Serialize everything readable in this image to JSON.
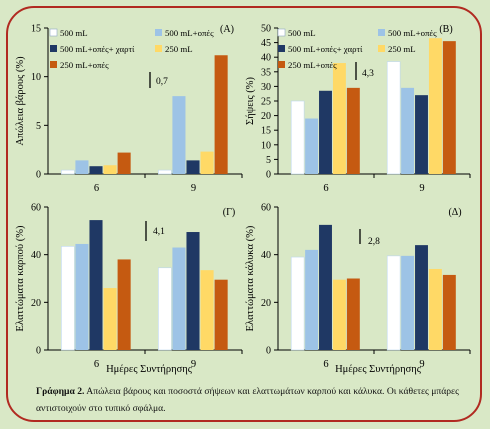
{
  "caption": {
    "label": "Γράφημα 2.",
    "text": " Απώλεια βάρους και ποσοστά σήψεων και ελαττωμάτων καρπού και κάλυκα. Οι κάθετες μπάρες αντιστοιχούν στο τυπικό σφάλμα."
  },
  "colors": {
    "frame": "#b12a21",
    "background": "#d9e8c6",
    "series": [
      "#ffffff",
      "#9dc3e6",
      "#1f3864",
      "#ffd966",
      "#c55a11"
    ]
  },
  "chart_data": [
    {
      "type": "bar",
      "panel_label": "(Α)",
      "ylabel": "Απώλεια βάρους (%)",
      "xlabel": "",
      "categories": [
        "6",
        "9"
      ],
      "ylim": [
        0,
        15
      ],
      "yticks": [
        0,
        5,
        10,
        15
      ],
      "series": [
        {
          "name": "500 mL",
          "values": [
            0.4,
            0.4
          ]
        },
        {
          "name": "500 mL+οπές",
          "values": [
            1.4,
            8.0
          ]
        },
        {
          "name": "500 mL+οπές+ χαρτί",
          "values": [
            0.8,
            1.4
          ]
        },
        {
          "name": "250 mL",
          "values": [
            0.9,
            2.3
          ]
        },
        {
          "name": "250 mL+οπές",
          "values": [
            2.2,
            12.2
          ]
        }
      ],
      "error_bar": {
        "label": "0,7",
        "value": 0.7
      },
      "legend": "top"
    },
    {
      "type": "bar",
      "panel_label": "(Β)",
      "ylabel": "Σήψεις (%)",
      "xlabel": "",
      "categories": [
        "6",
        "9"
      ],
      "ylim": [
        0,
        50
      ],
      "yticks": [
        0,
        5,
        10,
        15,
        20,
        25,
        30,
        35,
        40,
        45,
        50
      ],
      "series": [
        {
          "name": "500 mL",
          "values": [
            25,
            38.5
          ]
        },
        {
          "name": "500 mL+οπές",
          "values": [
            19,
            29.5
          ]
        },
        {
          "name": "500 mL+οπές+ χαρτί",
          "values": [
            28.5,
            27
          ]
        },
        {
          "name": "250 mL",
          "values": [
            38,
            46.5
          ]
        },
        {
          "name": "250 mL+οπές",
          "values": [
            29.5,
            45.5
          ]
        }
      ],
      "error_bar": {
        "label": "4,3",
        "value": 4.3
      },
      "legend": "top"
    },
    {
      "type": "bar",
      "panel_label": "(Γ)",
      "ylabel": "Ελαττώματα καρπού (%)",
      "xlabel": "Ημέρες Συντήρησης",
      "categories": [
        "6",
        "9"
      ],
      "ylim": [
        0,
        60
      ],
      "yticks": [
        0,
        20,
        40,
        60
      ],
      "series": [
        {
          "name": "500 mL",
          "values": [
            43.5,
            34.5
          ]
        },
        {
          "name": "500 mL+οπές",
          "values": [
            44.5,
            43
          ]
        },
        {
          "name": "500 mL+οπές+ χαρτί",
          "values": [
            54.5,
            49.5
          ]
        },
        {
          "name": "250 mL",
          "values": [
            26,
            33.5
          ]
        },
        {
          "name": "250 mL+οπές",
          "values": [
            38,
            29.5
          ]
        }
      ],
      "error_bar": {
        "label": "4,1",
        "value": 4.1
      },
      "legend": "none"
    },
    {
      "type": "bar",
      "panel_label": "(Δ)",
      "ylabel": "Ελαττώματα κάλυκα (%)",
      "xlabel": "Ημέρες Συντήρησης",
      "categories": [
        "6",
        "9"
      ],
      "ylim": [
        0,
        60
      ],
      "yticks": [
        0,
        20,
        40,
        60
      ],
      "series": [
        {
          "name": "500 mL",
          "values": [
            39,
            39.5
          ]
        },
        {
          "name": "500 mL+οπές",
          "values": [
            42,
            39.5
          ]
        },
        {
          "name": "500 mL+οπές+ χαρτί",
          "values": [
            52.5,
            44
          ]
        },
        {
          "name": "250 mL",
          "values": [
            29.5,
            34
          ]
        },
        {
          "name": "250 mL+οπές",
          "values": [
            30,
            31.5
          ]
        }
      ],
      "error_bar": {
        "label": "2,8",
        "value": 2.8
      },
      "legend": "none"
    }
  ]
}
